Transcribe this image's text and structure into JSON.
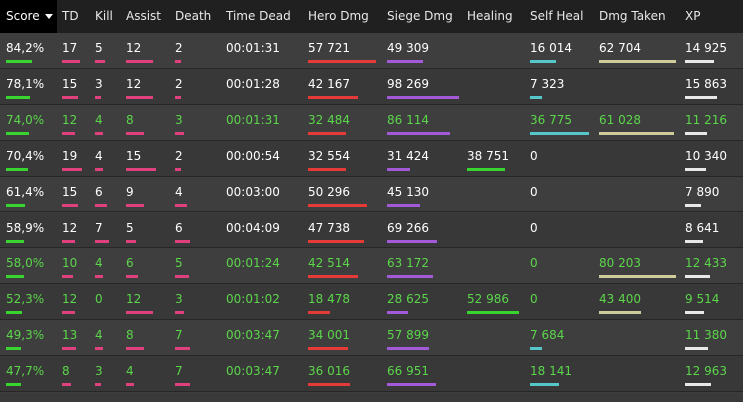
{
  "columns": [
    {
      "key": "score",
      "label": "Score",
      "bar_color": "#38d430",
      "sorted": true
    },
    {
      "key": "td",
      "label": "TD",
      "bar_color": "#e0417e"
    },
    {
      "key": "kill",
      "label": "Kill",
      "bar_color": "#e0417e"
    },
    {
      "key": "assist",
      "label": "Assist",
      "bar_color": "#e0417e"
    },
    {
      "key": "death",
      "label": "Death",
      "bar_color": "#e0417e"
    },
    {
      "key": "time_dead",
      "label": "Time Dead",
      "bar_color": null
    },
    {
      "key": "hero_dmg",
      "label": "Hero Dmg",
      "bar_color": "#e53a38"
    },
    {
      "key": "siege_dmg",
      "label": "Siege Dmg",
      "bar_color": "#a35ad8"
    },
    {
      "key": "healing",
      "label": "Healing",
      "bar_color": "#38d430"
    },
    {
      "key": "self_heal",
      "label": "Self Heal",
      "bar_color": "#56c7c9"
    },
    {
      "key": "dmg_taken",
      "label": "Dmg Taken",
      "bar_color": "#cfcc9c"
    },
    {
      "key": "xp",
      "label": "XP",
      "bar_color": "#e8e8e8"
    }
  ],
  "colors": {
    "header_bg": "#202020",
    "row_bg_odd": "#3e3e3e",
    "row_bg_even": "#383838",
    "text_default": "#ffffff",
    "text_ally": "#5bd64a"
  },
  "rows": [
    {
      "ally": false,
      "cells": [
        "84,2%",
        "17",
        "5",
        "12",
        "2",
        "00:01:31",
        "57 721",
        "49 309",
        "",
        "16 014",
        "62 704",
        "14 925"
      ],
      "fills": [
        0.93,
        0.9,
        0.58,
        0.9,
        0.4,
        null,
        1.0,
        0.5,
        null,
        0.44,
        1.0,
        0.92
      ]
    },
    {
      "ally": false,
      "cells": [
        "78,1%",
        "15",
        "3",
        "12",
        "2",
        "00:01:28",
        "42 167",
        "98 269",
        "",
        "7 323",
        "",
        "15 863"
      ],
      "fills": [
        0.87,
        0.8,
        0.35,
        0.9,
        0.4,
        null,
        0.73,
        1.0,
        null,
        0.2,
        null,
        1.0
      ]
    },
    {
      "ally": true,
      "cells": [
        "74,0%",
        "12",
        "4",
        "8",
        "3",
        "00:01:31",
        "32 484",
        "86 114",
        "",
        "36 775",
        "61 028",
        "11 216"
      ],
      "fills": [
        0.82,
        0.65,
        0.47,
        0.6,
        0.6,
        null,
        0.56,
        0.88,
        null,
        1.0,
        0.97,
        0.7
      ]
    },
    {
      "ally": false,
      "cells": [
        "70,4%",
        "19",
        "4",
        "15",
        "2",
        "00:00:54",
        "32 554",
        "31 424",
        "38 751",
        "0",
        "",
        "10 340"
      ],
      "fills": [
        0.78,
        1.0,
        0.47,
        1.0,
        0.4,
        null,
        0.56,
        0.32,
        0.73,
        null,
        null,
        0.65
      ]
    },
    {
      "ally": false,
      "cells": [
        "61,4%",
        "15",
        "6",
        "9",
        "4",
        "00:03:00",
        "50 296",
        "45 130",
        "",
        "0",
        "",
        "7 890"
      ],
      "fills": [
        0.68,
        0.8,
        0.7,
        0.6,
        0.8,
        null,
        0.87,
        0.46,
        null,
        null,
        null,
        0.5
      ]
    },
    {
      "ally": false,
      "cells": [
        "58,9%",
        "12",
        "7",
        "5",
        "6",
        "00:04:09",
        "47 738",
        "69 266",
        "",
        "0",
        "",
        "8 641"
      ],
      "fills": [
        0.66,
        0.65,
        0.82,
        0.33,
        1.0,
        null,
        0.83,
        0.7,
        null,
        null,
        null,
        0.55
      ]
    },
    {
      "ally": true,
      "cells": [
        "58,0%",
        "10",
        "4",
        "6",
        "5",
        "00:01:24",
        "42 514",
        "63 172",
        "",
        "0",
        "80 203",
        "12 433"
      ],
      "fills": [
        0.65,
        0.53,
        0.47,
        0.4,
        0.9,
        null,
        0.74,
        0.64,
        null,
        null,
        1.0,
        0.78
      ]
    },
    {
      "ally": true,
      "cells": [
        "52,3%",
        "12",
        "0",
        "12",
        "3",
        "00:01:02",
        "18 478",
        "28 625",
        "52 986",
        "0",
        "43 400",
        "9 514"
      ],
      "fills": [
        0.58,
        0.65,
        null,
        0.9,
        0.6,
        null,
        0.32,
        0.29,
        1.0,
        null,
        0.54,
        0.6
      ]
    },
    {
      "ally": true,
      "cells": [
        "49,3%",
        "13",
        "4",
        "8",
        "7",
        "00:03:47",
        "34 001",
        "57 899",
        "",
        "7 684",
        "",
        "11 380"
      ],
      "fills": [
        0.55,
        0.7,
        0.47,
        0.6,
        1.0,
        null,
        0.59,
        0.59,
        null,
        0.2,
        null,
        0.72
      ]
    },
    {
      "ally": true,
      "cells": [
        "47,7%",
        "8",
        "3",
        "4",
        "7",
        "00:03:47",
        "36 016",
        "66 951",
        "",
        "18 141",
        "",
        "12 963"
      ],
      "fills": [
        0.53,
        0.43,
        0.35,
        0.27,
        1.0,
        null,
        0.62,
        0.68,
        null,
        0.49,
        null,
        0.82
      ]
    }
  ]
}
